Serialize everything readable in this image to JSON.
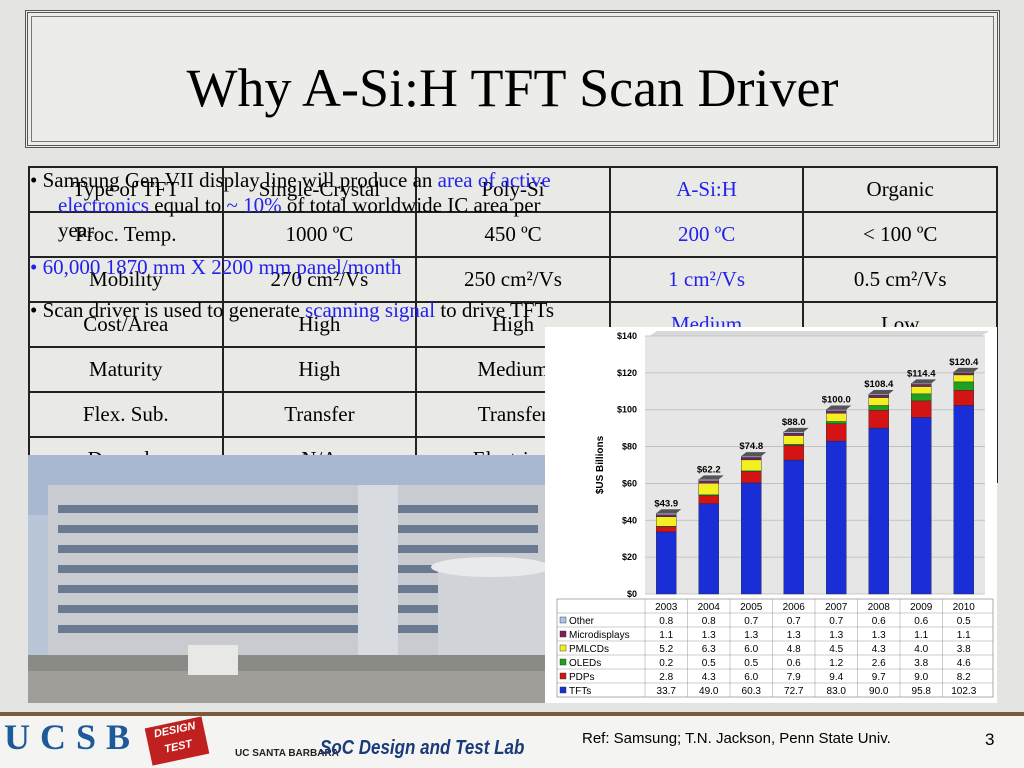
{
  "title": "Why A-Si:H TFT Scan Driver",
  "table": {
    "header": [
      "Type of TFT",
      "Single-Crystal",
      "Poly-Si",
      "A-Si:H",
      "Organic"
    ],
    "rows": [
      [
        "Proc. Temp.",
        "1000 ºC",
        "450 ºC",
        "200 ºC",
        "< 100 ºC"
      ],
      [
        "Mobility",
        "270 cm²/Vs",
        "250 cm²/Vs",
        "1 cm²/Vs",
        "0.5 cm²/Vs"
      ],
      [
        "Cost/Area",
        "High",
        "High",
        "Medium",
        "Low"
      ],
      [
        "Maturity",
        "High",
        "Medium"
      ],
      [
        "Flex. Sub.",
        "Transfer",
        "Transfer"
      ],
      [
        "Degrade.",
        "N/A",
        "Electrical"
      ]
    ]
  },
  "bullets": [
    [
      {
        "text": "Samsung Gen VII display line will produce an "
      },
      {
        "text": "area of active electronics",
        "color": "#2222ee"
      },
      {
        "text": " equal to "
      },
      {
        "text": "~ 10%",
        "color": "#2222ee"
      },
      {
        "text": " of total worldwide IC area per year"
      }
    ],
    [
      {
        "text": "60,000 1870 mm X 2200 mm",
        "color": "#2222ee"
      },
      {
        "text": " panel/month"
      }
    ],
    [
      {
        "text": "Scan driver is used to generate "
      },
      {
        "text": "scanning signal",
        "color": "#2222ee"
      },
      {
        "text": " to drive TFTs"
      }
    ]
  ],
  "chart_data": {
    "type": "stacked_bar",
    "y_label": "$US Billions",
    "categories": [
      "2003",
      "2004",
      "2005",
      "2006",
      "2007",
      "2008",
      "2009",
      "2010"
    ],
    "series": [
      {
        "name": "Other",
        "color": "#a8c4f0",
        "values": [
          0.8,
          0.8,
          0.7,
          0.7,
          0.7,
          0.6,
          0.6,
          0.5
        ]
      },
      {
        "name": "Microdisplays",
        "color": "#80205a",
        "values": [
          1.1,
          1.3,
          1.3,
          1.3,
          1.3,
          1.3,
          1.1,
          1.1
        ]
      },
      {
        "name": "PMLCDs",
        "color": "#f2f020",
        "values": [
          5.2,
          6.3,
          6.0,
          4.8,
          4.5,
          4.3,
          4.0,
          3.8
        ]
      },
      {
        "name": "OLEDs",
        "color": "#20a020",
        "values": [
          0.2,
          0.5,
          0.5,
          0.6,
          1.2,
          2.6,
          3.8,
          4.6
        ]
      },
      {
        "name": "PDPs",
        "color": "#d41414",
        "values": [
          2.8,
          4.3,
          6.0,
          7.9,
          9.4,
          9.7,
          9.0,
          8.2
        ]
      },
      {
        "name": "TFTs",
        "color": "#1a2ed8",
        "values": [
          33.7,
          49.0,
          60.3,
          72.7,
          83.0,
          90.0,
          95.8,
          102.3
        ]
      }
    ],
    "total_labels": [
      "$43.9",
      "$62.2",
      "$74.8",
      "$88.0",
      "$100.0",
      "$108.4",
      "$114.4",
      "$120.4"
    ],
    "ylim": [
      0,
      140
    ],
    "yticks": [
      {
        "value": 0,
        "label": "$0"
      },
      {
        "value": 20,
        "label": "$20"
      },
      {
        "value": 40,
        "label": "$40"
      },
      {
        "value": 60,
        "label": "$60"
      },
      {
        "value": 80,
        "label": "$80"
      },
      {
        "value": 100,
        "label": "$100"
      },
      {
        "value": 120,
        "label": "$120"
      },
      {
        "value": 140,
        "label": "$140"
      }
    ],
    "grid": true
  },
  "footer": {
    "logo": "UCSB",
    "badge": "DESIGN TEST",
    "campus": "UC SANTA BARBARA",
    "lab": "SoC Design and Test Lab",
    "ref": "Ref: Samsung; T.N. Jackson, Penn State Univ.",
    "page": "3"
  }
}
